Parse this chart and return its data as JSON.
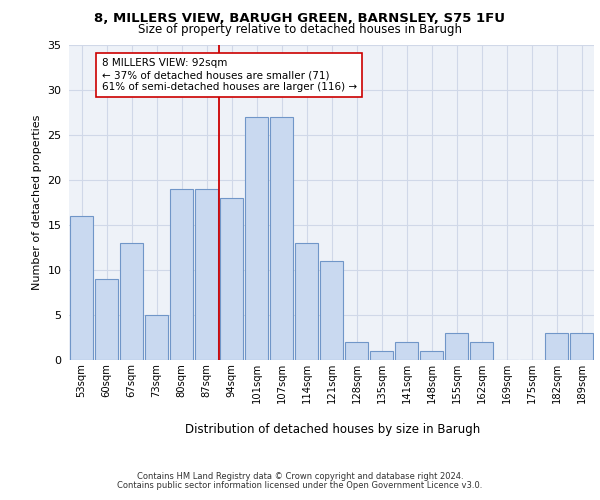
{
  "title1": "8, MILLERS VIEW, BARUGH GREEN, BARNSLEY, S75 1FU",
  "title2": "Size of property relative to detached houses in Barugh",
  "xlabel": "Distribution of detached houses by size in Barugh",
  "ylabel": "Number of detached properties",
  "categories": [
    "53sqm",
    "60sqm",
    "67sqm",
    "73sqm",
    "80sqm",
    "87sqm",
    "94sqm",
    "101sqm",
    "107sqm",
    "114sqm",
    "121sqm",
    "128sqm",
    "135sqm",
    "141sqm",
    "148sqm",
    "155sqm",
    "162sqm",
    "169sqm",
    "175sqm",
    "182sqm",
    "189sqm"
  ],
  "values": [
    16,
    9,
    13,
    5,
    19,
    19,
    18,
    27,
    27,
    13,
    11,
    2,
    1,
    2,
    1,
    3,
    2,
    0,
    0,
    3,
    3
  ],
  "bar_color": "#c9d9f0",
  "bar_edge_color": "#7096c8",
  "grid_color": "#d0d8e8",
  "bg_color": "#eef2f8",
  "annotation_text": "8 MILLERS VIEW: 92sqm\n← 37% of detached houses are smaller (71)\n61% of semi-detached houses are larger (116) →",
  "vline_x_index": 6,
  "vline_color": "#cc0000",
  "box_edge_color": "#cc0000",
  "ylim": [
    0,
    35
  ],
  "yticks": [
    0,
    5,
    10,
    15,
    20,
    25,
    30,
    35
  ],
  "footer1": "Contains HM Land Registry data © Crown copyright and database right 2024.",
  "footer2": "Contains public sector information licensed under the Open Government Licence v3.0."
}
